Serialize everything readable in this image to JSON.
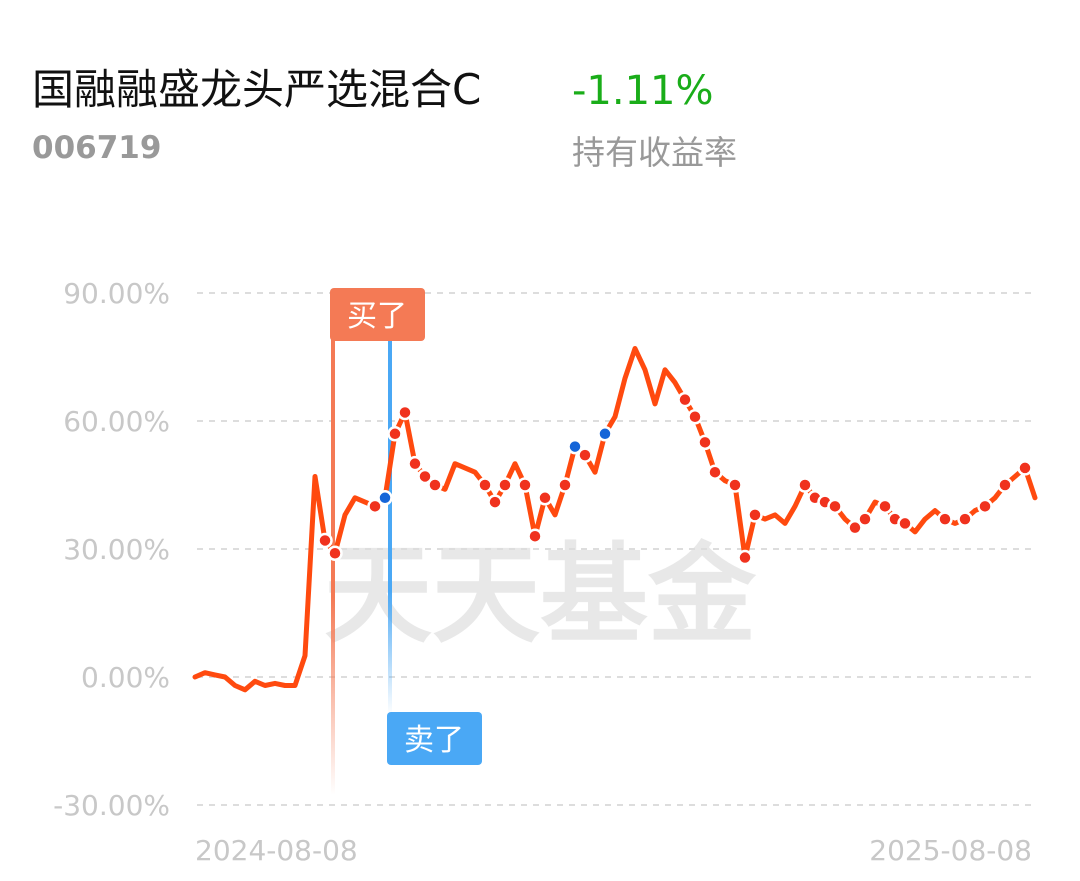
{
  "header": {
    "title": "国融融盛龙头严选混合C",
    "code": "006719",
    "return": "-1.11%",
    "return_label": "持有收益率"
  },
  "chart_data": {
    "type": "line",
    "watermark": "天天基金",
    "categories": [
      "2024-08-08",
      null,
      null,
      null,
      null,
      null,
      null,
      null,
      null,
      null,
      null,
      null,
      null,
      null,
      null,
      null,
      null,
      null,
      null,
      null,
      null,
      null,
      null,
      null,
      null,
      null,
      null,
      null,
      null,
      null,
      null,
      null,
      null,
      null,
      null,
      null,
      null,
      null,
      null,
      null,
      null,
      null,
      null,
      null,
      null,
      null,
      null,
      null,
      null,
      null,
      null,
      null,
      null,
      null,
      null,
      null,
      null,
      null,
      null,
      null,
      null,
      null,
      null,
      null,
      null,
      null,
      null,
      null,
      null,
      null,
      null,
      null,
      null,
      null,
      null,
      null,
      null,
      null,
      null,
      null,
      null,
      null,
      null,
      null,
      "2025-08-08"
    ],
    "series": [
      {
        "style": "line",
        "color": "#ff4a0f",
        "values": [
          0,
          1,
          0.5,
          0,
          -2,
          -3,
          -1,
          -2,
          -1.5,
          -2,
          -2,
          5,
          47,
          32,
          29,
          38,
          42,
          41,
          40,
          42,
          57,
          62,
          50,
          47,
          45,
          44,
          50,
          49,
          48,
          45,
          41,
          45,
          50,
          45,
          33,
          42,
          38,
          45,
          54,
          52,
          48,
          57,
          61,
          70,
          77,
          72,
          64,
          72,
          69,
          65,
          61,
          55,
          48,
          46,
          45,
          28,
          38,
          37,
          38,
          36,
          40,
          45,
          42,
          41,
          40,
          37,
          35,
          37,
          41,
          40,
          37,
          36,
          34,
          37,
          39,
          37,
          36,
          37,
          39,
          40,
          42,
          45,
          47,
          49,
          42
        ]
      },
      {
        "style": "dots",
        "color": "#f0321e",
        "values": [
          null,
          null,
          null,
          null,
          null,
          null,
          null,
          null,
          null,
          null,
          null,
          null,
          null,
          32,
          29,
          null,
          null,
          null,
          40,
          null,
          57,
          62,
          50,
          47,
          45,
          null,
          null,
          null,
          null,
          45,
          41,
          45,
          null,
          45,
          33,
          42,
          null,
          45,
          null,
          52,
          null,
          null,
          null,
          null,
          null,
          null,
          null,
          null,
          null,
          65,
          61,
          55,
          48,
          null,
          45,
          28,
          38,
          null,
          null,
          null,
          null,
          45,
          42,
          41,
          40,
          null,
          35,
          37,
          null,
          40,
          37,
          36,
          null,
          null,
          null,
          37,
          null,
          37,
          null,
          40,
          null,
          45,
          null,
          49,
          null
        ]
      },
      {
        "style": "dots",
        "color": "#1565d8",
        "values": [
          null,
          null,
          null,
          null,
          null,
          null,
          null,
          null,
          null,
          null,
          null,
          null,
          null,
          null,
          null,
          null,
          null,
          null,
          null,
          42,
          null,
          null,
          null,
          null,
          null,
          null,
          null,
          null,
          null,
          null,
          null,
          null,
          null,
          null,
          null,
          null,
          null,
          null,
          54,
          null,
          null,
          57,
          null,
          null,
          null,
          null,
          null,
          null,
          null,
          null,
          null,
          null,
          null,
          null,
          null,
          null,
          null,
          null,
          null,
          null,
          null,
          null,
          null,
          null,
          null,
          null,
          null,
          null,
          null,
          null,
          null,
          null,
          null,
          null,
          null,
          null,
          null,
          null,
          null,
          null,
          null,
          null,
          null,
          null,
          null
        ]
      }
    ],
    "annotations": [
      {
        "text": "买了",
        "color": "#f47a55"
      },
      {
        "text": "卖了",
        "color": "#4aa8f5"
      }
    ],
    "ylim": [
      -30,
      90
    ],
    "yticks": [
      {
        "value": -30,
        "label": "-30.00%"
      },
      {
        "value": 0,
        "label": "0.00%"
      },
      {
        "value": 30,
        "label": "30.00%"
      },
      {
        "value": 60,
        "label": "60.00%"
      },
      {
        "value": 90,
        "label": "90.00%"
      }
    ],
    "grid": true
  }
}
